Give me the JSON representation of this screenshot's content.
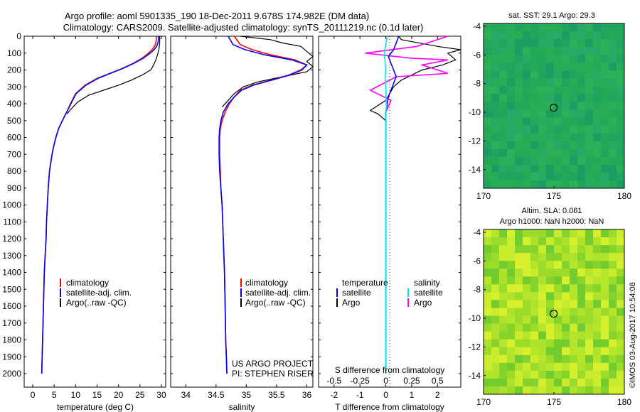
{
  "header": {
    "line1": "Argo profile: aoml 5901335_190 18-Dec-2011 9.678S 174.982E (DM data)",
    "line2": "Climatology: CARS2009. Satellite-adjusted climatology: synTS_20111219.nc (0.1d later)"
  },
  "side_text": "©IMOS 03-Aug-2017 10:54:08",
  "colors": {
    "climatology": "#ff0000",
    "satellite": "#0000ff",
    "argo": "#000000",
    "s_satellite": "#00e5ee",
    "s_argo": "#ff00ff"
  },
  "chart_data": [
    {
      "type": "line",
      "panel": "temperature",
      "xlabel": "temperature (deg C)",
      "xlim": [
        -2,
        31
      ],
      "xticks": [
        "0",
        "5",
        "10",
        "15",
        "20",
        "25",
        "30"
      ],
      "xtick_values": [
        0,
        5,
        10,
        15,
        20,
        25,
        30
      ],
      "ylim": [
        2080,
        0
      ],
      "yticks": [
        "0",
        "100",
        "200",
        "300",
        "400",
        "500",
        "600",
        "700",
        "800",
        "900",
        "1000",
        "1100",
        "1200",
        "1300",
        "1400",
        "1500",
        "1600",
        "1700",
        "1800",
        "1900",
        "2000"
      ],
      "ytick_values": [
        0,
        100,
        200,
        300,
        400,
        500,
        600,
        700,
        800,
        900,
        1000,
        1100,
        1200,
        1300,
        1400,
        1500,
        1600,
        1700,
        1800,
        1900,
        2000
      ],
      "legend": [
        "climatology",
        "satellite-adj. clim.",
        "Argo(..raw -QC)"
      ],
      "series": [
        {
          "name": "climatology",
          "color": "#ff0000",
          "x": [
            28.8,
            28.8,
            28.7,
            28.4,
            27.8,
            27.0,
            25.5,
            23.5,
            21.0,
            18.0,
            15.0,
            12.2,
            10.0,
            8.8,
            7.9,
            6.9,
            6.0,
            5.4,
            4.9,
            4.5,
            4.2,
            3.9,
            3.6,
            3.4,
            3.2,
            3.1,
            2.9,
            2.7,
            2.6,
            2.5,
            2.4,
            2.3,
            2.2,
            2.1
          ],
          "y": [
            0,
            20,
            40,
            60,
            80,
            100,
            130,
            160,
            190,
            220,
            250,
            290,
            340,
            400,
            450,
            500,
            550,
            600,
            650,
            700,
            750,
            800,
            900,
            1000,
            1100,
            1200,
            1300,
            1400,
            1500,
            1600,
            1700,
            1800,
            1900,
            2000
          ]
        },
        {
          "name": "satellite-adj. clim.",
          "color": "#0000ff",
          "x": [
            29.3,
            29.3,
            29.2,
            28.9,
            28.3,
            27.4,
            25.8,
            23.6,
            21.1,
            18.1,
            15.2,
            12.4,
            10.1,
            8.9,
            7.9,
            6.9,
            6.0,
            5.4,
            4.9,
            4.5,
            4.2,
            3.9,
            3.6,
            3.4,
            3.2,
            3.1,
            2.9,
            2.7,
            2.6,
            2.5,
            2.4,
            2.3,
            2.2,
            2.1
          ],
          "y": [
            0,
            20,
            40,
            60,
            80,
            100,
            130,
            160,
            190,
            220,
            250,
            290,
            340,
            400,
            450,
            500,
            550,
            600,
            650,
            700,
            750,
            800,
            900,
            1000,
            1100,
            1200,
            1300,
            1400,
            1500,
            1600,
            1700,
            1800,
            1900,
            2000
          ]
        }
      ]
    },
    {
      "type": "line",
      "panel": "salinity",
      "xlabel": "salinity",
      "xlim": [
        33.75,
        36.1
      ],
      "xticks": [
        "34",
        "34.5",
        "35",
        "35.5",
        "36"
      ],
      "xtick_values": [
        34,
        34.5,
        35,
        35.5,
        36
      ],
      "ylim": [
        2080,
        0
      ],
      "legend": [
        "climatology",
        "satellite-adj. clim.",
        "Argo(..raw -QC)"
      ],
      "annotation": [
        "US ARGO PROJECT",
        "PI: STEPHEN RISER"
      ],
      "series": [
        {
          "name": "climatology",
          "color": "#ff0000",
          "x": [
            34.8,
            34.9,
            35.1,
            35.4,
            35.8,
            36.0,
            35.9,
            35.7,
            35.4,
            35.1,
            34.9,
            34.8,
            34.72,
            34.65,
            34.6,
            34.57,
            34.56,
            34.56,
            34.57,
            34.58,
            34.6,
            34.62,
            34.64,
            34.65,
            34.66,
            34.67,
            34.68
          ],
          "y": [
            0,
            50,
            80,
            110,
            140,
            170,
            200,
            230,
            260,
            290,
            320,
            360,
            400,
            450,
            500,
            550,
            600,
            700,
            800,
            900,
            1000,
            1200,
            1400,
            1600,
            1800,
            1900,
            2000
          ]
        },
        {
          "name": "satellite-adj. clim.",
          "color": "#0000ff",
          "x": [
            34.7,
            34.78,
            34.98,
            35.3,
            35.75,
            36.0,
            35.92,
            35.72,
            35.42,
            35.12,
            34.92,
            34.8,
            34.7,
            34.62,
            34.58,
            34.56,
            34.55,
            34.55,
            34.56,
            34.58,
            34.6,
            34.62,
            34.64,
            34.65,
            34.66,
            34.67,
            34.68
          ],
          "y": [
            0,
            50,
            80,
            110,
            140,
            170,
            200,
            230,
            260,
            290,
            320,
            360,
            400,
            450,
            500,
            550,
            600,
            700,
            800,
            900,
            1000,
            1200,
            1400,
            1600,
            1800,
            1900,
            2000
          ]
        }
      ]
    },
    {
      "type": "line",
      "panel": "differences",
      "xlabel": "T difference from climatology",
      "xlim": [
        -2.6,
        2.9
      ],
      "xticks": [
        "-2",
        "-1",
        "0",
        "1",
        "2"
      ],
      "xtick_values": [
        -2,
        -1,
        0,
        1,
        2
      ],
      "top_xlabel": "S difference from climatology",
      "top_xticks": [
        "-0.5",
        "-0.25",
        "0",
        "0.25",
        "0.5"
      ],
      "top_xtick_values": [
        -0.5,
        -0.25,
        0,
        0.25,
        0.5
      ],
      "top_xlim": [
        -0.65,
        0.725
      ],
      "ylim": [
        2080,
        0
      ],
      "legend_headers": [
        "temperature",
        "salinity"
      ],
      "legend": [
        "satellite",
        "Argo",
        "satellite",
        "Argo"
      ],
      "series": [
        {
          "name": "satellite",
          "quantity": "temperature",
          "color": "#0000ff",
          "x": [
            0.5,
            0.4,
            0.3,
            0.1,
            0.2,
            0.3,
            0.4,
            0.3,
            0.2,
            0.1,
            0.05,
            0.0,
            0.0,
            0.0,
            0.0,
            0.0,
            0.0,
            0.0
          ],
          "y": [
            0,
            40,
            80,
            120,
            160,
            200,
            240,
            280,
            320,
            360,
            400,
            450,
            500,
            600,
            800,
            1200,
            1600,
            2000
          ]
        },
        {
          "name": "satellite",
          "quantity": "salinity",
          "color": "#00e5ee",
          "x": [
            0.05,
            0.0,
            -0.06,
            -0.03,
            0.0,
            -0.03,
            0.0,
            0.02,
            0.0,
            0.0,
            0.0,
            0.0,
            0.0
          ],
          "y": [
            0,
            50,
            100,
            150,
            200,
            250,
            300,
            400,
            500,
            800,
            1200,
            1600,
            2000
          ]
        }
      ]
    },
    {
      "type": "heatmap",
      "panel": "sst_map",
      "title": "sat. SST: 29.1  Argo: 29.3",
      "xlim": [
        170,
        180
      ],
      "ylim": [
        -15.3,
        -3.8
      ],
      "xticks": [
        "170",
        "175",
        "180"
      ],
      "xtick_values": [
        170,
        175,
        180
      ],
      "yticks": [
        "-4",
        "-6",
        "-8",
        "-10",
        "-12",
        "-14"
      ],
      "ytick_values": [
        -4,
        -6,
        -8,
        -10,
        -12,
        -14
      ],
      "profile_location": [
        174.982,
        -9.678
      ]
    },
    {
      "type": "heatmap",
      "panel": "sla_map",
      "title": [
        "Altim. SLA: 0.061",
        "Argo h1000: NaN h2000: NaN"
      ],
      "xlim": [
        170,
        180
      ],
      "ylim": [
        -15.3,
        -3.8
      ],
      "xticks": [
        "170",
        "175",
        "180"
      ],
      "xtick_values": [
        170,
        175,
        180
      ],
      "yticks": [
        "-4",
        "-6",
        "-8",
        "-10",
        "-12",
        "-14"
      ],
      "ytick_values": [
        -4,
        -6,
        -8,
        -10,
        -12,
        -14
      ],
      "profile_location": [
        174.982,
        -9.678
      ]
    }
  ]
}
